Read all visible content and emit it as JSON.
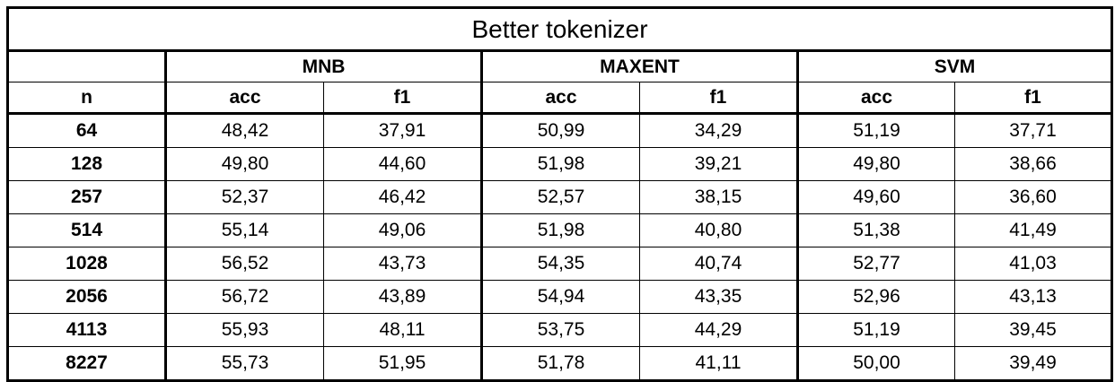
{
  "table": {
    "title": "Better tokenizer",
    "n_header": "n",
    "groups": [
      "MNB",
      "MAXENT",
      "SVM"
    ],
    "metrics": [
      "acc",
      "f1",
      "acc",
      "f1",
      "acc",
      "f1"
    ],
    "rows": [
      {
        "n": "64",
        "cells": [
          "48,42",
          "37,91",
          "50,99",
          "34,29",
          "51,19",
          "37,71"
        ]
      },
      {
        "n": "128",
        "cells": [
          "49,80",
          "44,60",
          "51,98",
          "39,21",
          "49,80",
          "38,66"
        ]
      },
      {
        "n": "257",
        "cells": [
          "52,37",
          "46,42",
          "52,57",
          "38,15",
          "49,60",
          "36,60"
        ]
      },
      {
        "n": "514",
        "cells": [
          "55,14",
          "49,06",
          "51,98",
          "40,80",
          "51,38",
          "41,49"
        ]
      },
      {
        "n": "1028",
        "cells": [
          "56,52",
          "43,73",
          "54,35",
          "40,74",
          "52,77",
          "41,03"
        ]
      },
      {
        "n": "2056",
        "cells": [
          "56,72",
          "43,89",
          "54,94",
          "43,35",
          "52,96",
          "43,13"
        ]
      },
      {
        "n": "4113",
        "cells": [
          "55,93",
          "48,11",
          "53,75",
          "44,29",
          "51,19",
          "39,45"
        ]
      },
      {
        "n": "8227",
        "cells": [
          "55,73",
          "51,95",
          "51,78",
          "41,11",
          "50,00",
          "39,49"
        ]
      }
    ]
  }
}
